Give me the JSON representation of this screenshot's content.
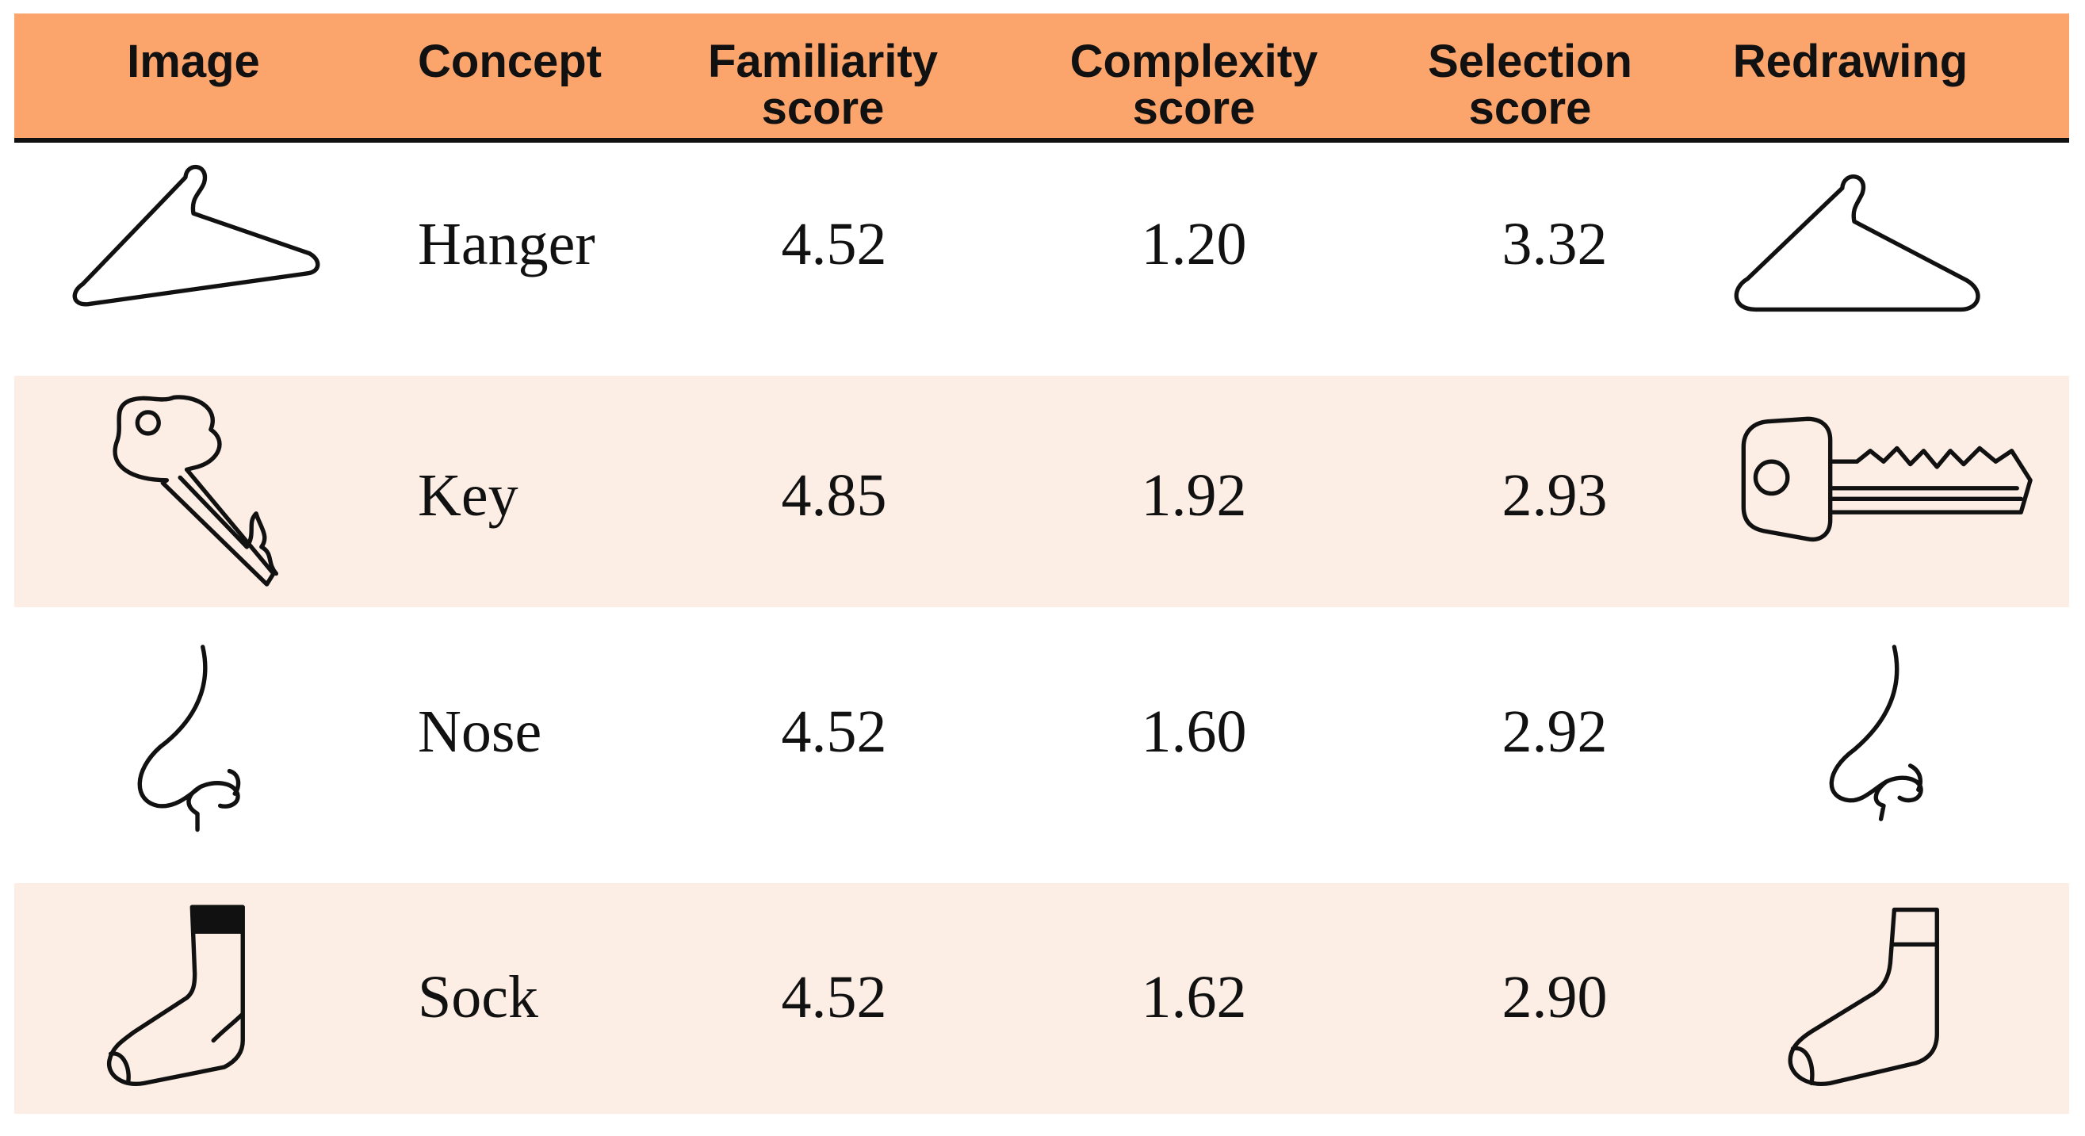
{
  "table": {
    "columns": [
      [
        "Image"
      ],
      [
        "Concept"
      ],
      [
        "Familiarity",
        "score"
      ],
      [
        "Complexity",
        "score"
      ],
      [
        "Selection",
        "score"
      ],
      [
        "Redrawing"
      ]
    ],
    "rows": [
      [
        "Hanger",
        "4.52",
        "1.20",
        "3.32"
      ],
      [
        "Key",
        "4.85",
        "1.92",
        "2.93"
      ],
      [
        "Nose",
        "4.52",
        "1.60",
        "2.92"
      ],
      [
        "Sock",
        "4.52",
        "1.62",
        "2.90"
      ]
    ]
  }
}
